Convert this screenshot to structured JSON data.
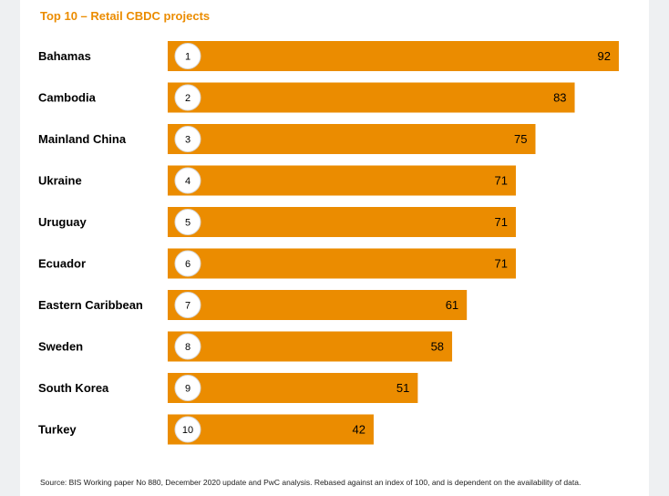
{
  "title": "Top 10 – Retail CBDC projects",
  "source": "Source: BIS Working paper No 880, December 2020 update and PwC analysis. Rebased against an index of 100, and is dependent on the availability of data.",
  "colors": {
    "bar": "#eb8c00",
    "title": "#eb8c00",
    "badge_fill": "#ffffff",
    "text": "#000000"
  },
  "chart_data": {
    "type": "bar",
    "orientation": "horizontal",
    "title": "Top 10 – Retail CBDC projects",
    "categories": [
      "Bahamas",
      "Cambodia",
      "Mainland China",
      "Ukraine",
      "Uruguay",
      "Ecuador",
      "Eastern Caribbean",
      "Sweden",
      "South Korea",
      "Turkey"
    ],
    "ranks": [
      "1",
      "2",
      "3",
      "4",
      "5",
      "6",
      "7",
      "8",
      "9",
      "10"
    ],
    "values": [
      92,
      83,
      75,
      71,
      71,
      71,
      61,
      58,
      51,
      42
    ],
    "xlim": [
      0,
      100
    ],
    "grid": false,
    "legend": "none"
  }
}
